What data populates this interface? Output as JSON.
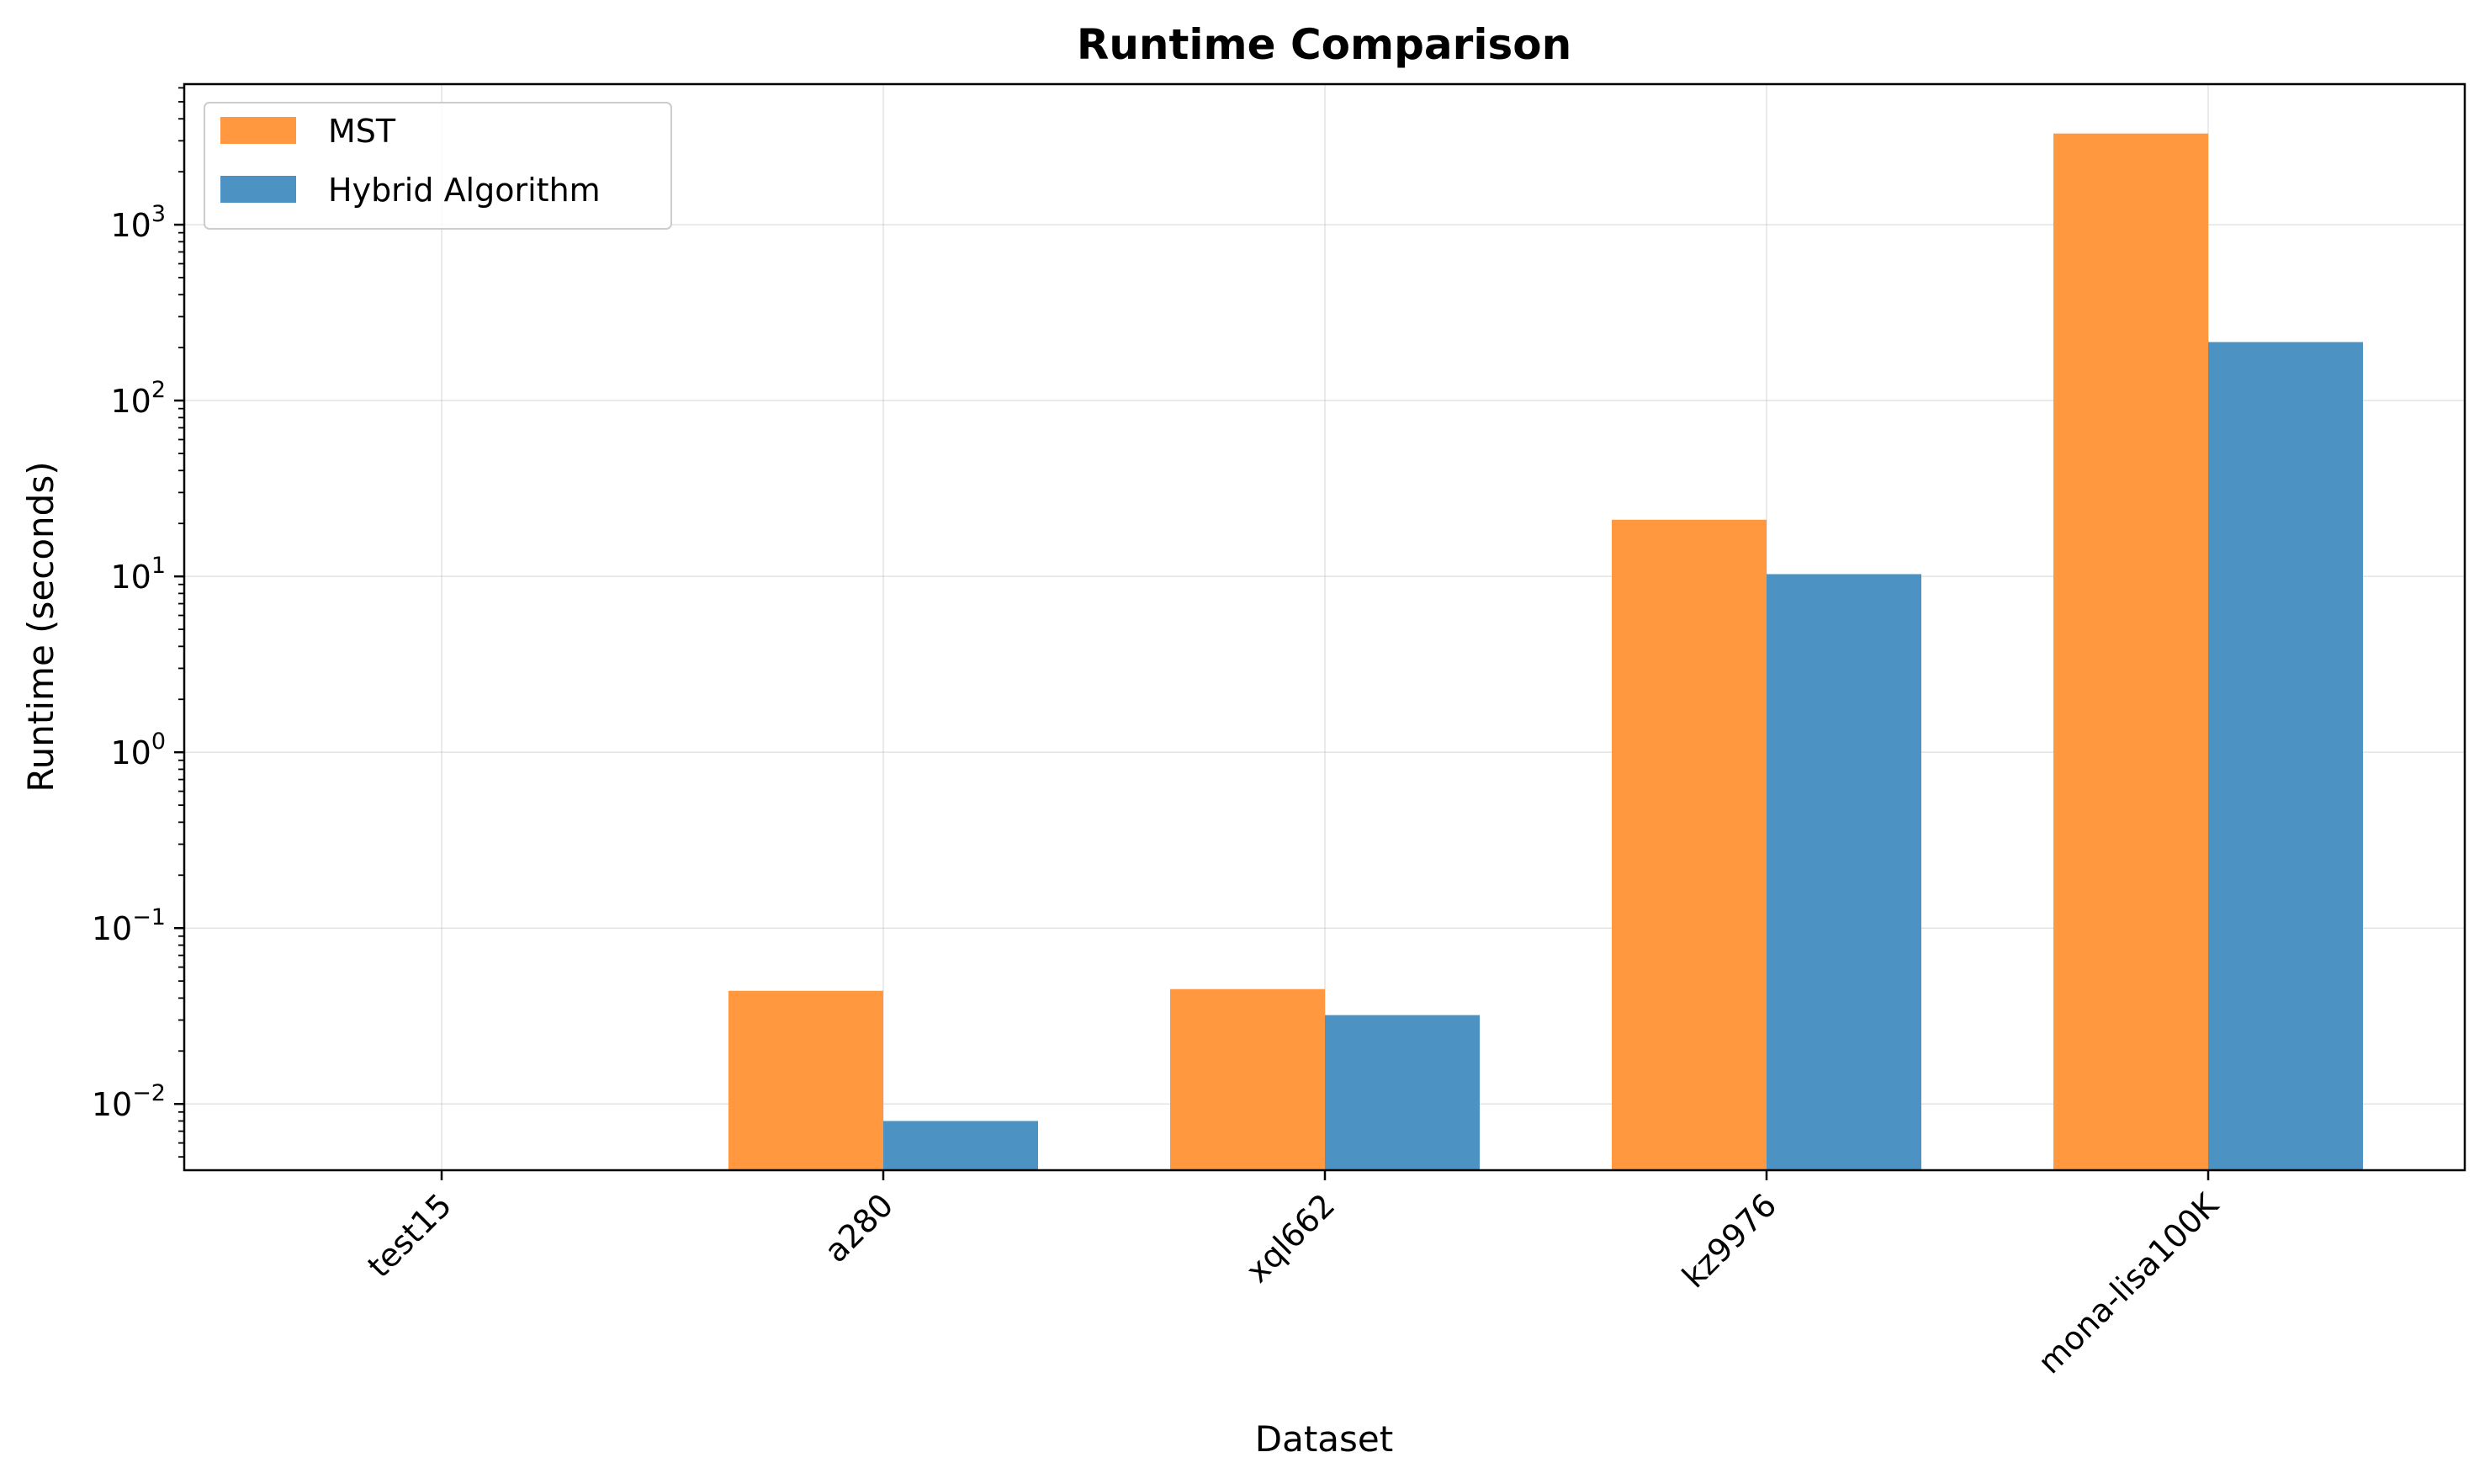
{
  "chart_data": {
    "type": "bar",
    "title": "Runtime Comparison",
    "xlabel": "Dataset",
    "ylabel": "Runtime (seconds)",
    "yscale": "log",
    "ylim": [
      0.0042,
      6300
    ],
    "grid": true,
    "legend_position": "top-left",
    "categories": [
      "test15",
      "a280",
      "xql662",
      "kz9976",
      "mona-lisa100K"
    ],
    "series": [
      {
        "name": "MST",
        "color": "#ff983f",
        "values": [
          null,
          0.044,
          0.045,
          21.0,
          3300
        ]
      },
      {
        "name": "Hybrid Algorithm",
        "color": "#4c92c3",
        "values": [
          null,
          0.008,
          0.032,
          10.3,
          215
        ]
      }
    ],
    "y_ticks": [
      {
        "value": 0.01,
        "mantissa": "10",
        "exponent": "−2"
      },
      {
        "value": 0.1,
        "mantissa": "10",
        "exponent": "−1"
      },
      {
        "value": 1,
        "mantissa": "10",
        "exponent": "0"
      },
      {
        "value": 10,
        "mantissa": "10",
        "exponent": "1"
      },
      {
        "value": 100,
        "mantissa": "10",
        "exponent": "2"
      },
      {
        "value": 1000,
        "mantissa": "10",
        "exponent": "3"
      }
    ]
  }
}
